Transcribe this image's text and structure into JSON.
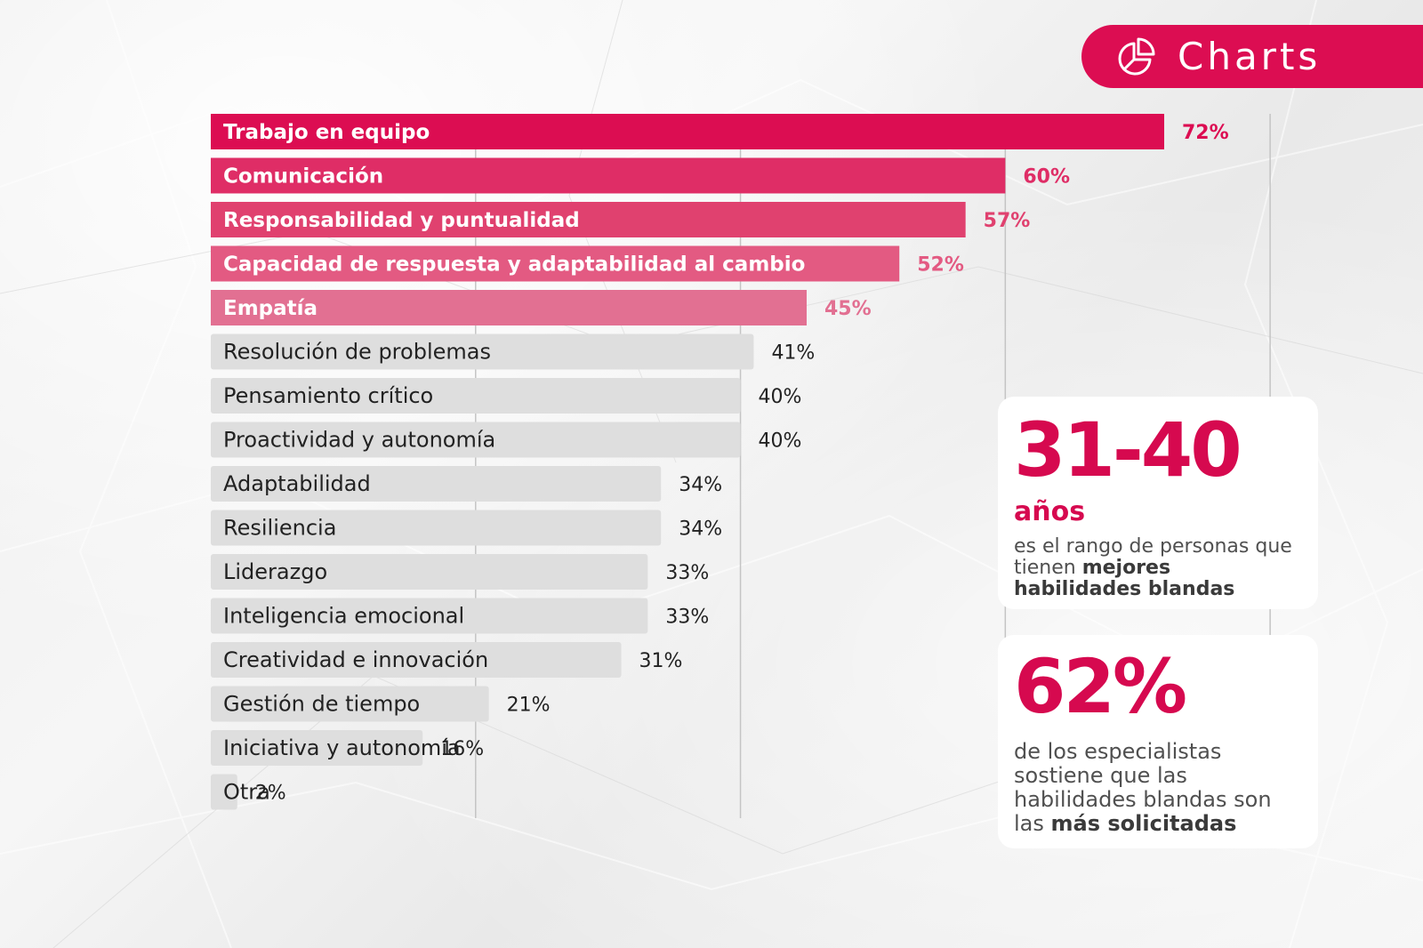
{
  "header": {
    "title": "Charts",
    "icon": "pie-chart-icon",
    "color": "#dc0d52"
  },
  "chart_data": {
    "type": "bar",
    "orientation": "horizontal",
    "title": "",
    "xlabel": "",
    "ylabel": "",
    "xlim": [
      0,
      72
    ],
    "grid": true,
    "categories": [
      "Trabajo en equipo",
      "Comunicación",
      "Responsabilidad y puntualidad",
      "Capacidad de respuesta y adaptabilidad al cambio",
      "Empatía",
      "Resolución de problemas",
      "Pensamiento crítico",
      "Proactividad y autonomía",
      "Adaptabilidad",
      "Resiliencia",
      "Liderazgo",
      "Inteligencia emocional",
      "Creatividad e innovación",
      "Gestión de tiempo",
      "Iniciativa y autonomía",
      "Otra"
    ],
    "values": [
      72,
      60,
      57,
      52,
      45,
      41,
      40,
      40,
      34,
      34,
      33,
      33,
      31,
      21,
      16,
      2
    ],
    "value_labels": [
      "72%",
      "60%",
      "57%",
      "52%",
      "45%",
      "41%",
      "40%",
      "40%",
      "34%",
      "34%",
      "33%",
      "33%",
      "31%",
      "21%",
      "16%",
      "2%"
    ],
    "highlight_colors": [
      "#dc0d52",
      "#df2d66",
      "#e0416f",
      "#e35a82",
      "#e27092"
    ],
    "default_color": "#dedede"
  },
  "cards": [
    {
      "big": "31-40",
      "sub": "años",
      "text": "es el rango de personas que tienen",
      "bold": "mejores habilidades blandas"
    },
    {
      "big": "62%",
      "text": "de los especialistas sostiene que las habilidades blandas son las",
      "bold": "más solicitadas"
    }
  ]
}
